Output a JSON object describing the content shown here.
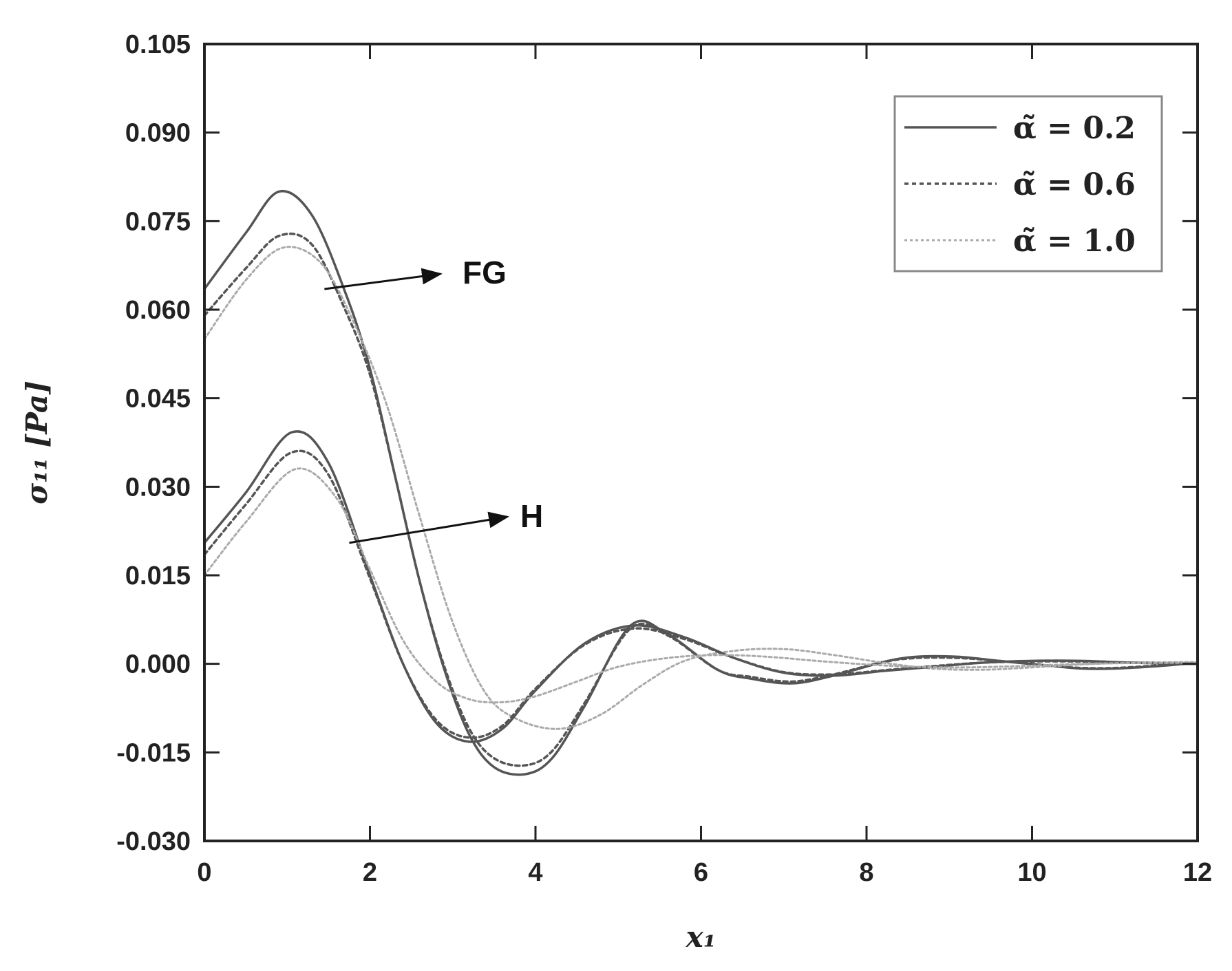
{
  "chart_data": {
    "type": "line",
    "title": "",
    "xlabel": "x₁",
    "ylabel": "σ₁₁ [Pa]",
    "xlim": [
      0,
      12
    ],
    "ylim": [
      -0.03,
      0.105
    ],
    "xticks": [
      "0",
      "2",
      "4",
      "6",
      "8",
      "10",
      "12"
    ],
    "yticks": [
      "-0.030",
      "-0.015",
      "0.000",
      "0.015",
      "0.030",
      "0.045",
      "0.060",
      "0.075",
      "0.090",
      "0.105"
    ],
    "grid": false,
    "legend_position": "top-right",
    "legend": [
      {
        "label": "α̃ = 0.2",
        "style": "solid",
        "color": "#555555"
      },
      {
        "label": "α̃ = 0.6",
        "style": "dotted",
        "color": "#555555"
      },
      {
        "label": "α̃ = 1.0",
        "style": "dotted-light",
        "color": "#aaaaaa"
      }
    ],
    "annotations": [
      {
        "text": "FG",
        "x": 1.45,
        "y": 0.0635
      },
      {
        "text": "H",
        "x": 1.75,
        "y": 0.0205
      }
    ],
    "series": [
      {
        "name": "α̃ = 0.2",
        "group": "FG",
        "style": "solid",
        "x": [
          0,
          0.5,
          0.9,
          1.3,
          1.7,
          2.0,
          2.3,
          2.6,
          2.9,
          3.2,
          3.5,
          3.87,
          4.2,
          4.6,
          5.15,
          5.6,
          6.2,
          6.6,
          7.1,
          7.6,
          8.2,
          8.6,
          9.1,
          9.6,
          10.2,
          10.6,
          11.0,
          11.5,
          12.0
        ],
        "y": [
          0.0635,
          0.073,
          0.08,
          0.076,
          0.063,
          0.05,
          0.032,
          0.014,
          -0.001,
          -0.012,
          -0.0175,
          -0.0187,
          -0.016,
          -0.007,
          0.0065,
          0.005,
          -0.001,
          -0.0025,
          -0.0033,
          -0.002,
          0.0003,
          0.0012,
          0.0012,
          0.0005,
          -0.0003,
          -0.0008,
          -0.0008,
          -0.0004,
          0.0002
        ]
      },
      {
        "name": "α̃ = 0.6",
        "group": "FG",
        "style": "dotted",
        "x": [
          0,
          0.5,
          0.9,
          1.3,
          1.7,
          2.0,
          2.3,
          2.6,
          2.9,
          3.2,
          3.5,
          3.87,
          4.2,
          4.6,
          5.15,
          5.6,
          6.2,
          6.6,
          7.1,
          7.6,
          8.2,
          8.6,
          9.1,
          9.6,
          10.2,
          10.6,
          11.0,
          11.5,
          12.0
        ],
        "y": [
          0.059,
          0.067,
          0.0725,
          0.071,
          0.06,
          0.049,
          0.032,
          0.014,
          -0.0005,
          -0.011,
          -0.016,
          -0.0172,
          -0.0148,
          -0.0065,
          0.006,
          0.0048,
          -0.001,
          -0.0022,
          -0.003,
          -0.0018,
          0.0003,
          0.001,
          0.001,
          0.0005,
          -0.0003,
          -0.0007,
          -0.0007,
          -0.0003,
          0.0002
        ]
      },
      {
        "name": "α̃ = 1.0",
        "group": "FG",
        "style": "dotted-light",
        "x": [
          0,
          0.5,
          0.95,
          1.4,
          1.8,
          2.2,
          2.6,
          3.0,
          3.4,
          3.8,
          4.3,
          4.8,
          5.3,
          5.8,
          6.4,
          7.0,
          7.6,
          8.2,
          8.8,
          9.4,
          10.0,
          10.6,
          11.2,
          12.0
        ],
        "y": [
          0.055,
          0.065,
          0.0705,
          0.068,
          0.058,
          0.044,
          0.025,
          0.007,
          -0.005,
          -0.0095,
          -0.011,
          -0.0085,
          -0.0035,
          0.0005,
          0.0022,
          0.0025,
          0.0015,
          0.0002,
          -0.0008,
          -0.001,
          -0.0006,
          -0.0001,
          0.0002,
          0.0003
        ]
      },
      {
        "name": "α̃ = 0.2",
        "group": "H",
        "style": "solid",
        "x": [
          0,
          0.5,
          1.05,
          1.5,
          2.0,
          2.4,
          2.8,
          3.2,
          3.6,
          4.0,
          4.6,
          5.2,
          5.8,
          6.4,
          7.0,
          7.6,
          8.2,
          8.8,
          9.4,
          10.0,
          10.6,
          11.2,
          12.0
        ],
        "y": [
          0.0205,
          0.029,
          0.0392,
          0.034,
          0.015,
          0.0,
          -0.01,
          -0.0132,
          -0.011,
          -0.0045,
          0.0035,
          0.0065,
          0.0045,
          0.001,
          -0.0015,
          -0.002,
          -0.0012,
          -0.0005,
          0.0002,
          0.0005,
          0.0005,
          0.0002,
          0.0
        ]
      },
      {
        "name": "α̃ = 0.6",
        "group": "H",
        "style": "dotted",
        "x": [
          0,
          0.5,
          1.05,
          1.5,
          2.0,
          2.4,
          2.8,
          3.2,
          3.6,
          4.0,
          4.6,
          5.2,
          5.8,
          6.4,
          7.0,
          7.6,
          8.2,
          8.8,
          9.4,
          10.0,
          10.6,
          11.2,
          12.0
        ],
        "y": [
          0.0185,
          0.027,
          0.0358,
          0.032,
          0.0145,
          0.0,
          -0.0095,
          -0.0125,
          -0.0105,
          -0.0042,
          0.0033,
          0.006,
          0.0042,
          0.001,
          -0.0014,
          -0.0018,
          -0.0011,
          -0.0004,
          0.0002,
          0.0004,
          0.0004,
          0.0002,
          0.0
        ]
      },
      {
        "name": "α̃ = 1.0",
        "group": "H",
        "style": "dotted-light",
        "x": [
          0,
          0.5,
          1.1,
          1.6,
          2.0,
          2.4,
          2.8,
          3.2,
          3.6,
          4.0,
          4.5,
          5.0,
          5.6,
          6.2,
          6.8,
          7.4,
          8.0,
          8.6,
          9.2,
          9.8,
          10.4,
          11.0,
          12.0
        ],
        "y": [
          0.015,
          0.024,
          0.033,
          0.028,
          0.016,
          0.004,
          -0.003,
          -0.006,
          -0.0065,
          -0.0055,
          -0.003,
          -0.0005,
          0.001,
          0.0015,
          0.0012,
          0.0005,
          -0.0001,
          -0.0005,
          -0.0006,
          -0.0004,
          -0.0001,
          0.0001,
          0.0002
        ]
      }
    ]
  }
}
